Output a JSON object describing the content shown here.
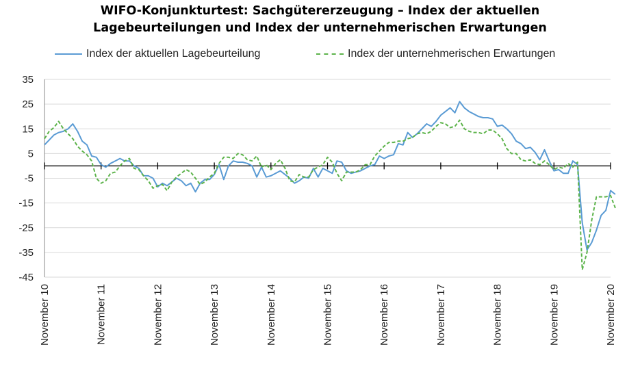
{
  "chart_data": {
    "type": "line",
    "title_line1": "WIFO-Konjunkturtest: Sachgütererzeugung – Index der aktuellen",
    "title_line2": "Lagebeurteilungen und Index der unternehmerischen Erwartungen",
    "xlabel": "",
    "ylabel": "",
    "ylim": [
      -45,
      35
    ],
    "yticks": [
      35,
      25,
      15,
      5,
      -5,
      -15,
      -25,
      -35,
      -45
    ],
    "xticks": [
      "November 10",
      "November 11",
      "November 12",
      "November 13",
      "November 14",
      "November 15",
      "November 16",
      "November 17",
      "November 18",
      "November 19",
      "November 20"
    ],
    "x_unit": "months since November 10 (monthly, 0 = Nov 2010, 120 = Nov 2020)",
    "legend_position": "top",
    "grid": "horizontal",
    "series": [
      {
        "name": "Index der aktuellen Lagebeurteilung",
        "color": "#5a9bd4",
        "style": "solid",
        "values": [
          8.5,
          10.5,
          12.5,
          13.5,
          14,
          15,
          17,
          14,
          10,
          8.5,
          4,
          3.5,
          0.5,
          -0.5,
          1,
          2,
          3,
          2,
          2,
          0,
          -1,
          -4,
          -4,
          -5,
          -8.5,
          -7,
          -8,
          -6.5,
          -5,
          -6,
          -8,
          -7,
          -10.5,
          -7,
          -5.5,
          -5.5,
          -3.5,
          0.5,
          -5.5,
          0,
          2,
          1.5,
          1.5,
          1,
          0,
          -4.5,
          -0.5,
          -4.5,
          -4,
          -3,
          -2,
          -3.5,
          -5,
          -7,
          -6,
          -4.5,
          -5,
          -1,
          -4.5,
          -1,
          -2,
          -3,
          2,
          1.5,
          -2,
          -3,
          -2.5,
          -2,
          -1,
          0,
          0.5,
          4,
          3,
          4,
          4.5,
          9,
          8.5,
          13.5,
          11.5,
          13,
          15,
          17,
          16,
          18,
          20.5,
          22,
          23.5,
          21.5,
          26,
          23.5,
          22,
          21,
          20,
          19.5,
          19.5,
          19,
          16,
          16.5,
          15,
          13,
          10,
          9,
          7,
          7.5,
          5.5,
          2.5,
          6.5,
          2,
          -2,
          -1.5,
          -3,
          -3,
          2,
          0.5,
          -23,
          -34,
          -31,
          -26,
          -20,
          -18,
          -10,
          -11.5
        ]
      },
      {
        "name": "Index der unternehmerischen Erwartungen",
        "color": "#5cb34a",
        "style": "dashed",
        "values": [
          11,
          14,
          15.5,
          18,
          15,
          13,
          11,
          8,
          6,
          4.5,
          2,
          -5,
          -7,
          -6,
          -3,
          -2.5,
          0,
          2,
          3,
          -1,
          -1.5,
          -4,
          -6,
          -9,
          -8,
          -7.5,
          -10,
          -6.5,
          -4.5,
          -3,
          -1.5,
          -2.5,
          -5,
          -7.5,
          -6.5,
          -4.5,
          -3,
          1,
          3.5,
          3.5,
          3,
          5,
          4.5,
          2.5,
          2,
          4,
          -0.5,
          0.5,
          -1.5,
          1,
          2.5,
          -1,
          -6,
          -6.5,
          -3.5,
          -4.5,
          -4.5,
          -1.5,
          -0.5,
          0.5,
          3.5,
          1.5,
          -3,
          -6,
          -2.5,
          -2.5,
          -2.5,
          -1.5,
          0.5,
          0.5,
          4,
          6,
          8,
          9.5,
          9.5,
          10,
          10,
          11,
          11.5,
          13,
          13.5,
          13,
          14,
          16,
          17.5,
          17,
          15.5,
          16,
          18.5,
          15,
          14,
          13.5,
          13.5,
          13,
          14.5,
          14.5,
          13,
          11,
          7,
          5,
          5,
          2.5,
          2,
          2.5,
          1,
          0.5,
          2,
          0.5,
          -1.5,
          -0.5,
          -1,
          1,
          -0.5,
          1.5,
          -42,
          -35,
          -22,
          -12.5,
          -12.5,
          -12.5,
          -12,
          -17
        ]
      }
    ]
  }
}
